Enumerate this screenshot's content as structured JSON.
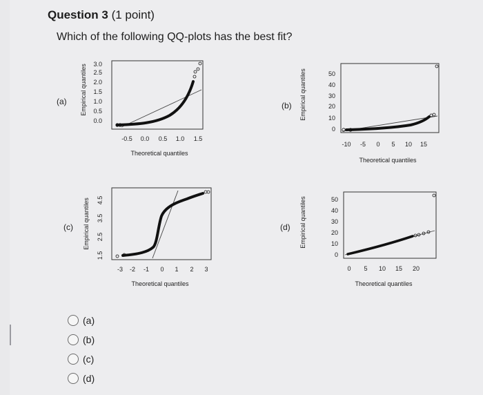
{
  "question": {
    "title": "Question 3",
    "points": "(1 point)",
    "prompt": "Which of the following QQ-plots has the best fit?"
  },
  "panels": [
    {
      "label": "(a)",
      "ylabel": "Empirical quantiles",
      "xlabel": "Theoretical quantiles",
      "xticks": [
        "-0.5",
        "0.0",
        "0.5",
        "1.0",
        "1.5"
      ],
      "yticks": [
        "0.0",
        "0.5",
        "1.0",
        "1.5",
        "2.0",
        "2.5",
        "3.0"
      ]
    },
    {
      "label": "(b)",
      "ylabel": "Empirical quantiles",
      "xlabel": "Theoretical quantiles",
      "xticks": [
        "-10",
        "-5",
        "0",
        "5",
        "10",
        "15"
      ],
      "yticks": [
        "0",
        "10",
        "20",
        "30",
        "40",
        "50"
      ]
    },
    {
      "label": "(c)",
      "ylabel": "Empirical quantiles",
      "xlabel": "Theoretical quantiles",
      "xticks": [
        "-3",
        "-2",
        "-1",
        "0",
        "1",
        "2",
        "3"
      ],
      "yticks": [
        "1.5",
        "2.5",
        "3.5",
        "4.5"
      ]
    },
    {
      "label": "(d)",
      "ylabel": "Empirical quantiles",
      "xlabel": "Theoretical quantiles",
      "xticks": [
        "0",
        "5",
        "10",
        "15",
        "20"
      ],
      "yticks": [
        "0",
        "10",
        "20",
        "30",
        "40",
        "50"
      ]
    }
  ],
  "options": [
    "(a)",
    "(b)",
    "(c)",
    "(d)"
  ]
}
